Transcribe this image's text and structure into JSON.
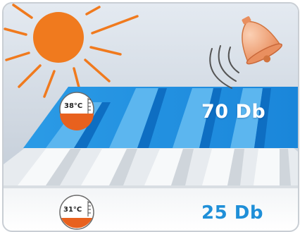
{
  "colors": {
    "sky_top": "#dfe6ee",
    "sky_bottom": "#c4cdd8",
    "sun": "#f07a1e",
    "roof_blue": "#1e8fe0",
    "roof_blue_dark": "#0f6fc4",
    "roof_light": "#eef1f4",
    "bell": "#f4b088",
    "label_top": "#ffffff",
    "label_bottom": "#1f8fd8",
    "gauge_fill": "#e8611e"
  },
  "icons": {
    "sun": "sun-icon",
    "bell": "bell-icon",
    "sound_waves": "sound-waves-icon",
    "thermometer": "thermometer-icon"
  },
  "top": {
    "temperature": "38°C",
    "noise": "70 Db"
  },
  "bottom": {
    "temperature": "31°C",
    "noise": "25 Db"
  }
}
